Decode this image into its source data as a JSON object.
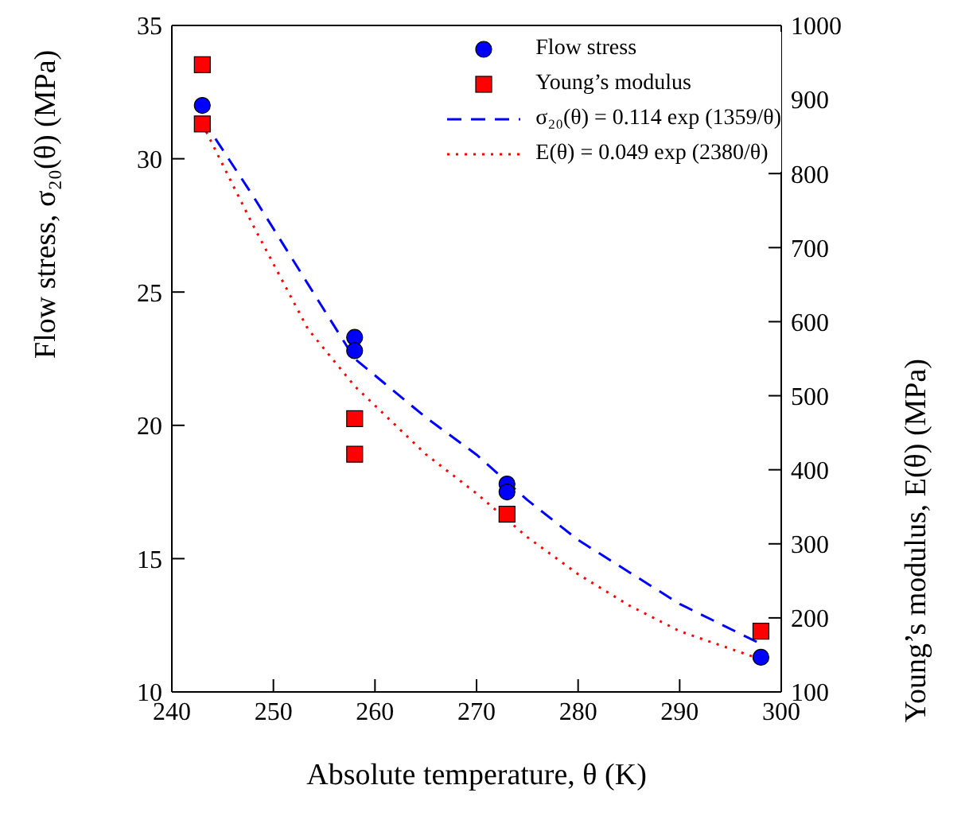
{
  "chart_data": {
    "type": "scatter",
    "xlabel": "Absolute temperature, θ (K)",
    "ylabel": "Flow stress, σ₂₀(θ) (MPa)",
    "y2label": "Young’s modulus, E(θ) (MPa)",
    "xlim": [
      240,
      300
    ],
    "xticks": [
      240,
      250,
      260,
      270,
      280,
      290,
      300
    ],
    "ylim": [
      10,
      35
    ],
    "yticks": [
      10,
      15,
      20,
      25,
      30,
      35
    ],
    "y2lim": [
      100,
      1000
    ],
    "y2ticks": [
      100,
      200,
      300,
      400,
      500,
      600,
      700,
      800,
      900,
      1000
    ],
    "grid": false,
    "legend": "top right",
    "series": [
      {
        "name": "Flow stress",
        "marker": "circle",
        "color": "#0000ff",
        "x": [
          243,
          258,
          258,
          273,
          273,
          298
        ],
        "values": [
          32.0,
          23.3,
          22.8,
          17.8,
          17.5,
          11.3
        ]
      },
      {
        "name": "Young’s modulus",
        "marker": "square",
        "color": "#ff0000",
        "axis": "y2",
        "x": [
          243,
          243,
          258,
          258,
          273,
          298
        ],
        "values": [
          947,
          867,
          469,
          421,
          340,
          182
        ]
      },
      {
        "name": "σ₂₀(θ) = 0.114 exp (1359/θ)",
        "type": "line",
        "line_style": "dashed",
        "marker": "none",
        "color": "#0000ff",
        "x": [
          243,
          248,
          253.4,
          258,
          265,
          270,
          275,
          280,
          285,
          290,
          298
        ],
        "values": [
          31.5,
          28.6,
          25.3,
          22.5,
          20.3,
          18.9,
          17.2,
          15.7,
          14.5,
          13.3,
          11.8
        ]
      },
      {
        "name": "E(θ) = 0.049 exp (2380/θ)",
        "type": "line",
        "line_style": "dotted",
        "marker": "none",
        "color": "#ff0000",
        "axis": "y2",
        "x": [
          243,
          248,
          253.4,
          258,
          265,
          270,
          275,
          280,
          285,
          290,
          298
        ],
        "values": [
          867,
          730,
          590,
          513,
          421,
          368,
          309,
          259,
          217,
          182,
          144
        ]
      }
    ]
  }
}
